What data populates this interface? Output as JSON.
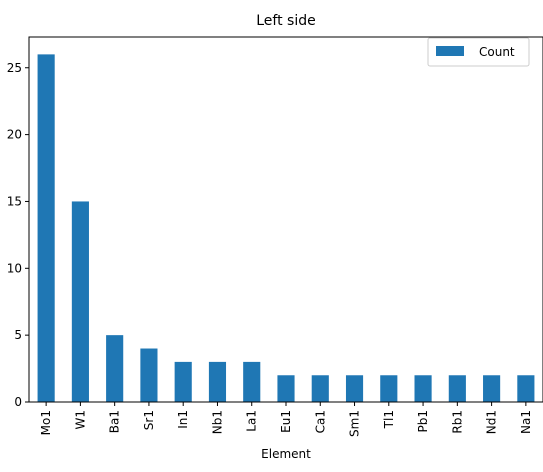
{
  "chart_data": {
    "type": "bar",
    "title": "Left side",
    "xlabel": "Element",
    "ylabel": "",
    "categories": [
      "Mo1",
      "W1",
      "Ba1",
      "Sr1",
      "In1",
      "Nb1",
      "La1",
      "Eu1",
      "Ca1",
      "Sm1",
      "Tl1",
      "Pb1",
      "Rb1",
      "Nd1",
      "Na1"
    ],
    "series": [
      {
        "name": "Count",
        "values": [
          26,
          15,
          5,
          4,
          3,
          3,
          3,
          2,
          2,
          2,
          2,
          2,
          2,
          2,
          2
        ],
        "color": "#1f77b4"
      }
    ],
    "ylim": [
      0,
      27.3
    ],
    "yticks": [
      0,
      5,
      10,
      15,
      20,
      25
    ],
    "grid": false,
    "legend_position": "top-right"
  }
}
